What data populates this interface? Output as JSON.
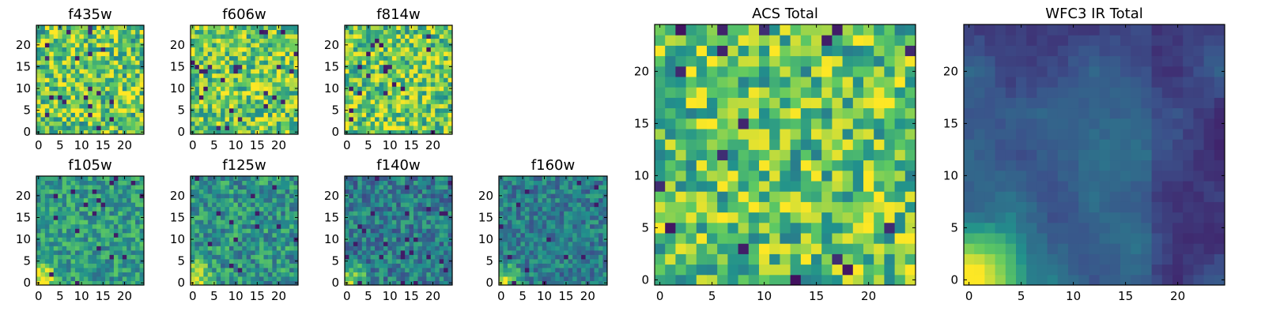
{
  "colormap": [
    "#440154",
    "#3b528b",
    "#21918c",
    "#5ec962",
    "#fde725"
  ],
  "chart_data": [
    {
      "type": "heatmap",
      "title": "f435w",
      "grid_size": 25,
      "xticks": [
        0,
        5,
        10,
        15,
        20
      ],
      "yticks": [
        0,
        5,
        10,
        15,
        20
      ],
      "xlim": [
        0,
        24
      ],
      "ylim": [
        0,
        24
      ],
      "pattern": "uniform",
      "mean": 0.74,
      "noise": 0.32,
      "seed": 11
    },
    {
      "type": "heatmap",
      "title": "f606w",
      "grid_size": 25,
      "xticks": [
        0,
        5,
        10,
        15,
        20
      ],
      "yticks": [
        0,
        5,
        10,
        15,
        20
      ],
      "xlim": [
        0,
        24
      ],
      "ylim": [
        0,
        24
      ],
      "pattern": "uniform",
      "mean": 0.76,
      "noise": 0.3,
      "seed": 23
    },
    {
      "type": "heatmap",
      "title": "f814w",
      "grid_size": 25,
      "xticks": [
        0,
        5,
        10,
        15,
        20
      ],
      "yticks": [
        0,
        5,
        10,
        15,
        20
      ],
      "xlim": [
        0,
        24
      ],
      "ylim": [
        0,
        24
      ],
      "pattern": "uniform",
      "mean": 0.75,
      "noise": 0.3,
      "seed": 37
    },
    {
      "type": "heatmap",
      "title": "f105w",
      "grid_size": 25,
      "xticks": [
        0,
        5,
        10,
        15,
        20
      ],
      "yticks": [
        0,
        5,
        10,
        15,
        20
      ],
      "xlim": [
        0,
        24
      ],
      "ylim": [
        0,
        24
      ],
      "pattern": "corner",
      "mean": 0.55,
      "noise": 0.2,
      "seed": 41
    },
    {
      "type": "heatmap",
      "title": "f125w",
      "grid_size": 25,
      "xticks": [
        0,
        5,
        10,
        15,
        20
      ],
      "yticks": [
        0,
        5,
        10,
        15,
        20
      ],
      "xlim": [
        0,
        24
      ],
      "ylim": [
        0,
        24
      ],
      "pattern": "corner",
      "mean": 0.52,
      "noise": 0.22,
      "seed": 53
    },
    {
      "type": "heatmap",
      "title": "f140w",
      "grid_size": 25,
      "xticks": [
        0,
        5,
        10,
        15,
        20
      ],
      "yticks": [
        0,
        5,
        10,
        15,
        20
      ],
      "xlim": [
        0,
        24
      ],
      "ylim": [
        0,
        24
      ],
      "pattern": "corner",
      "mean": 0.42,
      "noise": 0.2,
      "seed": 67
    },
    {
      "type": "heatmap",
      "title": "f160w",
      "grid_size": 25,
      "xticks": [
        0,
        5,
        10,
        15,
        20
      ],
      "yticks": [
        0,
        5,
        10,
        15,
        20
      ],
      "xlim": [
        0,
        24
      ],
      "ylim": [
        0,
        24
      ],
      "pattern": "corner",
      "mean": 0.42,
      "noise": 0.18,
      "seed": 79
    },
    {
      "type": "heatmap",
      "title": "ACS Total",
      "grid_size": 25,
      "xticks": [
        0,
        5,
        10,
        15,
        20
      ],
      "yticks": [
        0,
        5,
        10,
        15,
        20
      ],
      "xlim": [
        0,
        24
      ],
      "ylim": [
        0,
        24
      ],
      "pattern": "uniform",
      "mean": 0.72,
      "noise": 0.3,
      "seed": 97
    },
    {
      "type": "heatmap",
      "title": "WFC3 IR Total",
      "grid_size": 25,
      "xticks": [
        0,
        5,
        10,
        15,
        20
      ],
      "yticks": [
        0,
        5,
        10,
        15,
        20
      ],
      "xlim": [
        0,
        24
      ],
      "ylim": [
        0,
        24
      ],
      "pattern": "smooth-corner",
      "mean": 0.28,
      "noise": 0.06,
      "seed": 101
    }
  ]
}
